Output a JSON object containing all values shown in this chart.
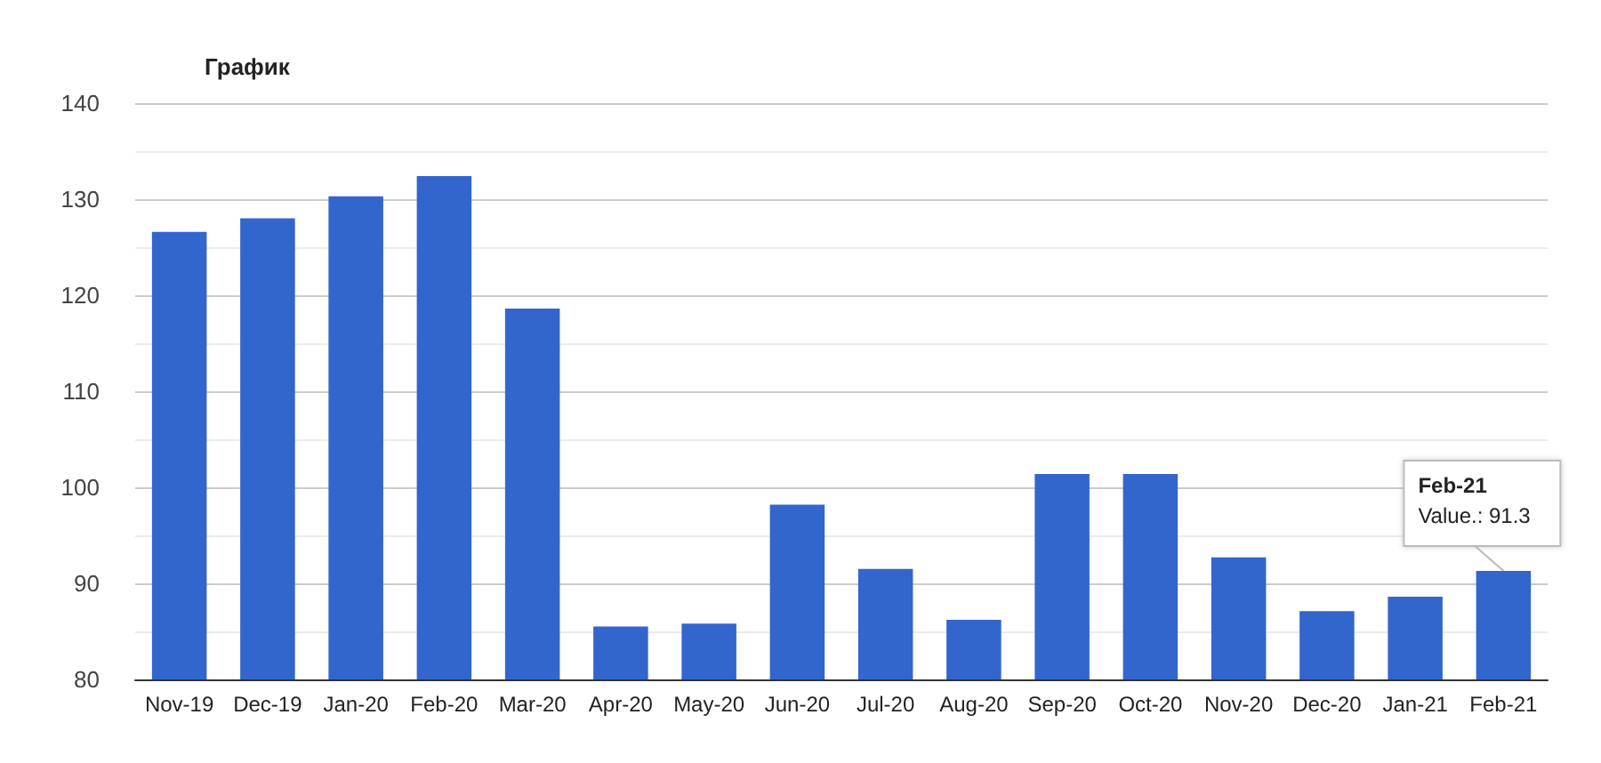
{
  "chart_data": {
    "type": "bar",
    "title": "График",
    "categories": [
      "Nov-19",
      "Dec-19",
      "Jan-20",
      "Feb-20",
      "Mar-20",
      "Apr-20",
      "May-20",
      "Jun-20",
      "Jul-20",
      "Aug-20",
      "Sep-20",
      "Oct-20",
      "Nov-20",
      "Dec-20",
      "Jan-21",
      "Feb-21"
    ],
    "values": [
      126.6,
      128.0,
      130.3,
      132.4,
      118.6,
      85.5,
      85.8,
      98.2,
      91.5,
      86.2,
      101.4,
      101.4,
      92.7,
      87.1,
      88.6,
      91.3
    ],
    "color": "#3366cc",
    "ylim": [
      80,
      140
    ],
    "yticks": [
      80,
      90,
      100,
      110,
      120,
      130,
      140
    ],
    "grid": true,
    "annotations": [
      {
        "text": "Feb-21\nValue.: 91.3",
        "x": "Feb-21",
        "y": 91.3
      }
    ]
  }
}
